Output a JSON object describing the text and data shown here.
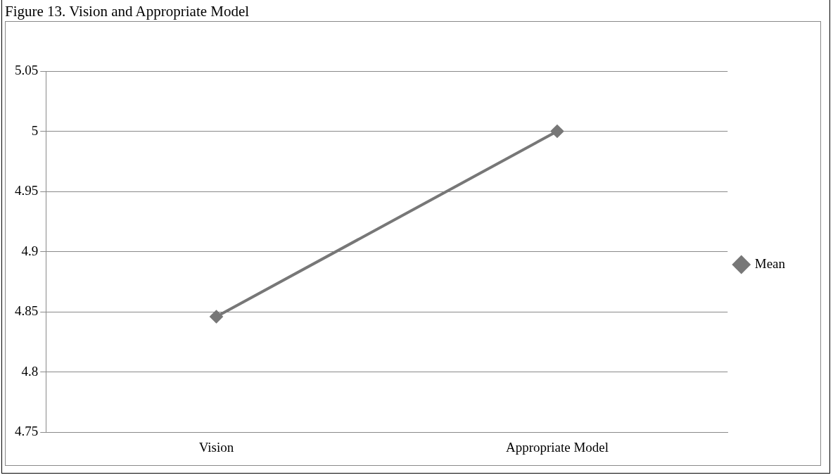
{
  "chart_data": {
    "type": "line",
    "title": "Figure 13. Vision and Appropriate Model",
    "categories": [
      "Vision",
      "Appropriate Model"
    ],
    "series": [
      {
        "name": "Mean",
        "color": "#777777",
        "values": [
          4.846,
          5
        ]
      }
    ],
    "ylim": [
      4.75,
      5.05
    ],
    "yticks": [
      4.75,
      4.8,
      4.85,
      4.9,
      4.95,
      5,
      5.05
    ],
    "grid": "y",
    "legend": "right",
    "marker": "diamond",
    "line_style": "solid"
  }
}
